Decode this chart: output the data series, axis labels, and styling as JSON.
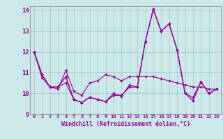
{
  "xlabel": "Windchill (Refroidissement éolien,°C)",
  "bg_color": "#cce8e8",
  "line_color": "#990099",
  "grid_color": "#aacccc",
  "xlim": [
    -0.5,
    23.5
  ],
  "ylim": [
    9,
    14.2
  ],
  "yticks": [
    9,
    10,
    11,
    12,
    13,
    14
  ],
  "xticks": [
    0,
    1,
    2,
    3,
    4,
    5,
    6,
    7,
    8,
    9,
    10,
    11,
    12,
    13,
    14,
    15,
    16,
    17,
    18,
    19,
    20,
    21,
    22,
    23
  ],
  "series": [
    [
      12.0,
      10.9,
      10.3,
      10.3,
      10.5,
      9.7,
      9.55,
      9.8,
      9.7,
      9.6,
      10.0,
      9.85,
      10.4,
      10.3,
      12.5,
      14.05,
      13.0,
      13.35,
      12.1,
      10.0,
      9.8,
      10.55,
      10.0,
      10.2
    ],
    [
      12.0,
      10.9,
      10.3,
      10.3,
      10.8,
      9.7,
      9.55,
      9.8,
      9.7,
      9.6,
      9.9,
      9.9,
      10.3,
      10.3,
      12.5,
      14.05,
      13.0,
      13.35,
      12.1,
      10.0,
      9.65,
      10.55,
      10.0,
      10.2
    ],
    [
      12.0,
      10.75,
      10.3,
      10.2,
      11.1,
      10.1,
      9.9,
      10.5,
      10.6,
      10.9,
      10.8,
      10.6,
      10.8,
      10.8,
      10.8,
      10.8,
      10.7,
      10.6,
      10.5,
      10.4,
      10.3,
      10.3,
      10.2,
      10.2
    ],
    [
      12.0,
      10.9,
      10.3,
      10.3,
      10.8,
      9.7,
      9.55,
      9.8,
      9.7,
      9.6,
      9.9,
      9.9,
      10.3,
      10.3,
      12.5,
      14.05,
      13.0,
      13.35,
      12.1,
      10.0,
      9.65,
      10.55,
      10.0,
      10.2
    ]
  ]
}
